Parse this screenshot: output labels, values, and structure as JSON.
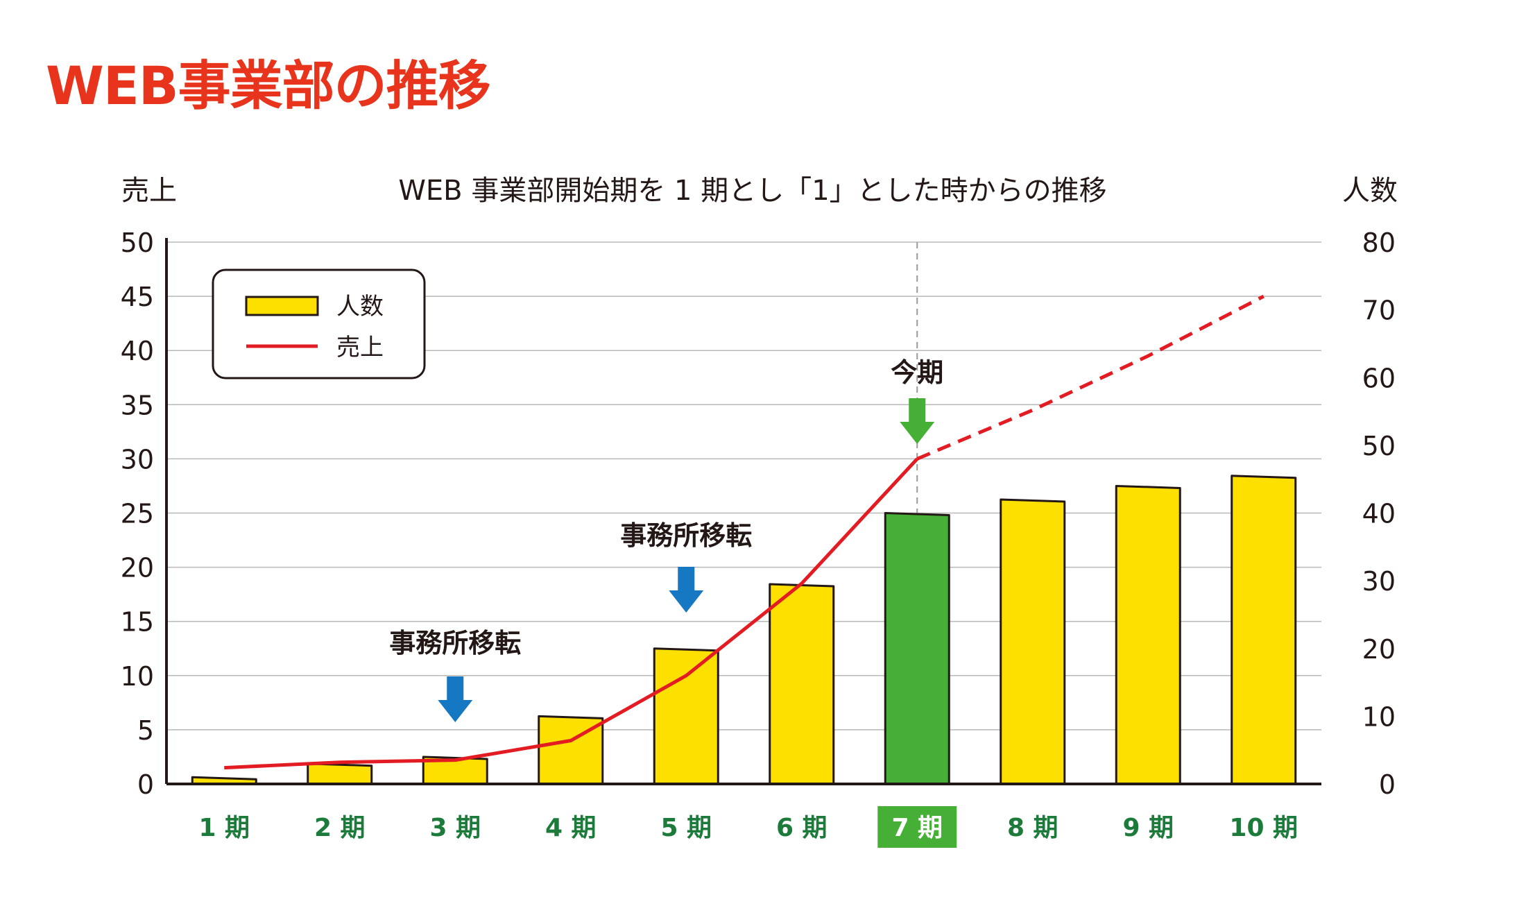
{
  "page_title": "WEB事業部の推移",
  "colors": {
    "title": "#e8341c",
    "bar": "#fde000",
    "bar_current": "#45b035",
    "line": "#e31b23",
    "arrow_blue": "#1677c2",
    "arrow_green": "#45b035",
    "category_text": "#1c7a3a"
  },
  "chart_data": {
    "type": "bar",
    "title": "WEB 事業部開始期を 1 期とし「1」とした時からの推移",
    "categories": [
      "1 期",
      "2 期",
      "3 期",
      "4 期",
      "5 期",
      "6 期",
      "7 期",
      "8 期",
      "9 期",
      "10 期"
    ],
    "highlight_category": "7 期",
    "y_left": {
      "label": "売上",
      "range": [
        0,
        50
      ],
      "ticks": [
        0,
        5,
        10,
        15,
        20,
        25,
        30,
        35,
        40,
        45,
        50
      ]
    },
    "y_right": {
      "label": "人数",
      "range": [
        0,
        80
      ],
      "ticks": [
        0,
        10,
        20,
        30,
        40,
        50,
        60,
        70,
        80
      ]
    },
    "grid": true,
    "series": [
      {
        "name": "人数",
        "type": "bar",
        "axis": "right",
        "values": [
          1,
          3,
          4,
          10,
          20,
          29.5,
          40,
          42,
          44,
          45.5
        ]
      },
      {
        "name": "売上",
        "type": "line",
        "axis": "left",
        "values": [
          1.5,
          2,
          2.2,
          4,
          10,
          18.5,
          30,
          34.5,
          39.5,
          45
        ],
        "solid_through_index": 6,
        "projected_style": "dashed"
      }
    ],
    "legend": {
      "position": "top-left"
    },
    "annotations": [
      {
        "text": "事務所移転",
        "category": "3 期",
        "arrow": "blue"
      },
      {
        "text": "事務所移転",
        "category": "5 期",
        "arrow": "blue"
      },
      {
        "text": "今期",
        "category": "7 期",
        "arrow": "green"
      }
    ]
  }
}
